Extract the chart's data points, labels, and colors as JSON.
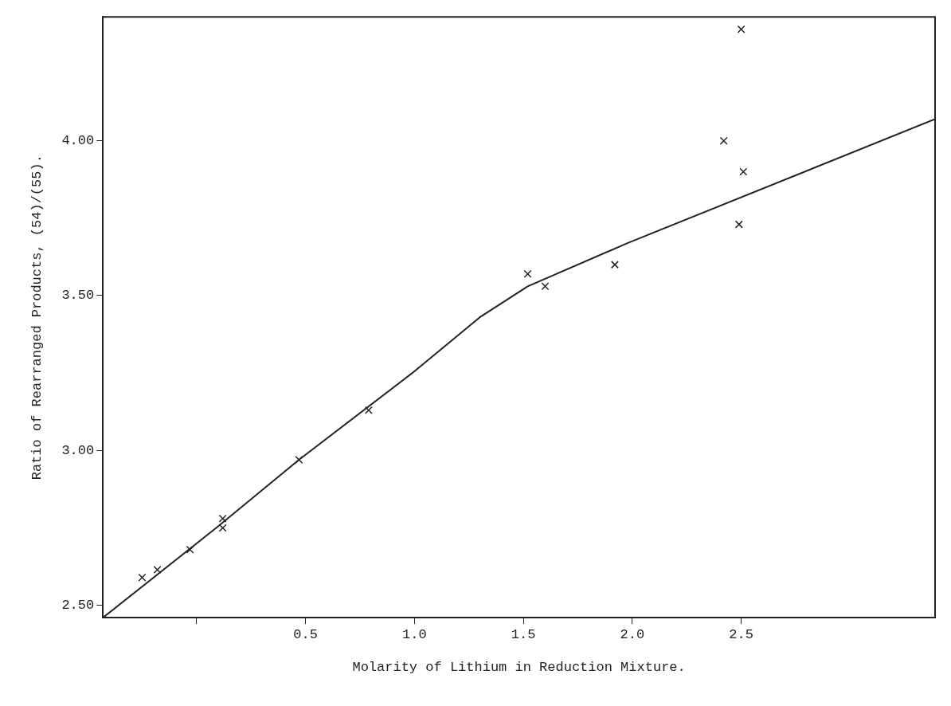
{
  "chart_data": {
    "type": "scatter",
    "xlabel": "Molarity of Lithium in Reduction Mixture.",
    "ylabel": "Ratio of Rearranged Products, (54)/(55).",
    "xlim": [
      -0.43,
      3.39
    ],
    "ylim": [
      2.46,
      4.4
    ],
    "xticks": [
      {
        "value": 0,
        "label": null
      },
      0.5,
      {
        "value": 1,
        "label": "1.0"
      },
      1.5,
      {
        "value": 2,
        "label": "2.0"
      },
      2.5
    ],
    "yticks": [
      {
        "value": 2.5,
        "label": "2.50"
      },
      {
        "value": 3,
        "label": "3.00"
      },
      {
        "value": 3.5,
        "label": "3.50"
      },
      {
        "value": 4,
        "label": "4.00"
      }
    ],
    "grid": false,
    "legend": false,
    "marker": "cross",
    "series": [
      {
        "color": "#222222",
        "x": [
          -0.25,
          -0.18,
          -0.03,
          0.12,
          0.12,
          0.47,
          0.79,
          1.52,
          1.6,
          1.92,
          2.42,
          2.49,
          2.51,
          2.5
        ],
        "values": [
          2.59,
          2.615,
          2.68,
          2.78,
          2.75,
          2.97,
          3.13,
          3.57,
          3.53,
          3.6,
          4.0,
          3.73,
          3.9,
          4.36
        ]
      },
      {
        "type": "line",
        "marker": "none",
        "color": "#222222",
        "x": [
          -0.43,
          0.09,
          0.47,
          0.99,
          1.3,
          1.52,
          1.98,
          3.39
        ],
        "values": [
          2.46,
          2.75,
          2.97,
          3.25,
          3.43,
          3.53,
          3.67,
          4.07
        ]
      }
    ]
  }
}
